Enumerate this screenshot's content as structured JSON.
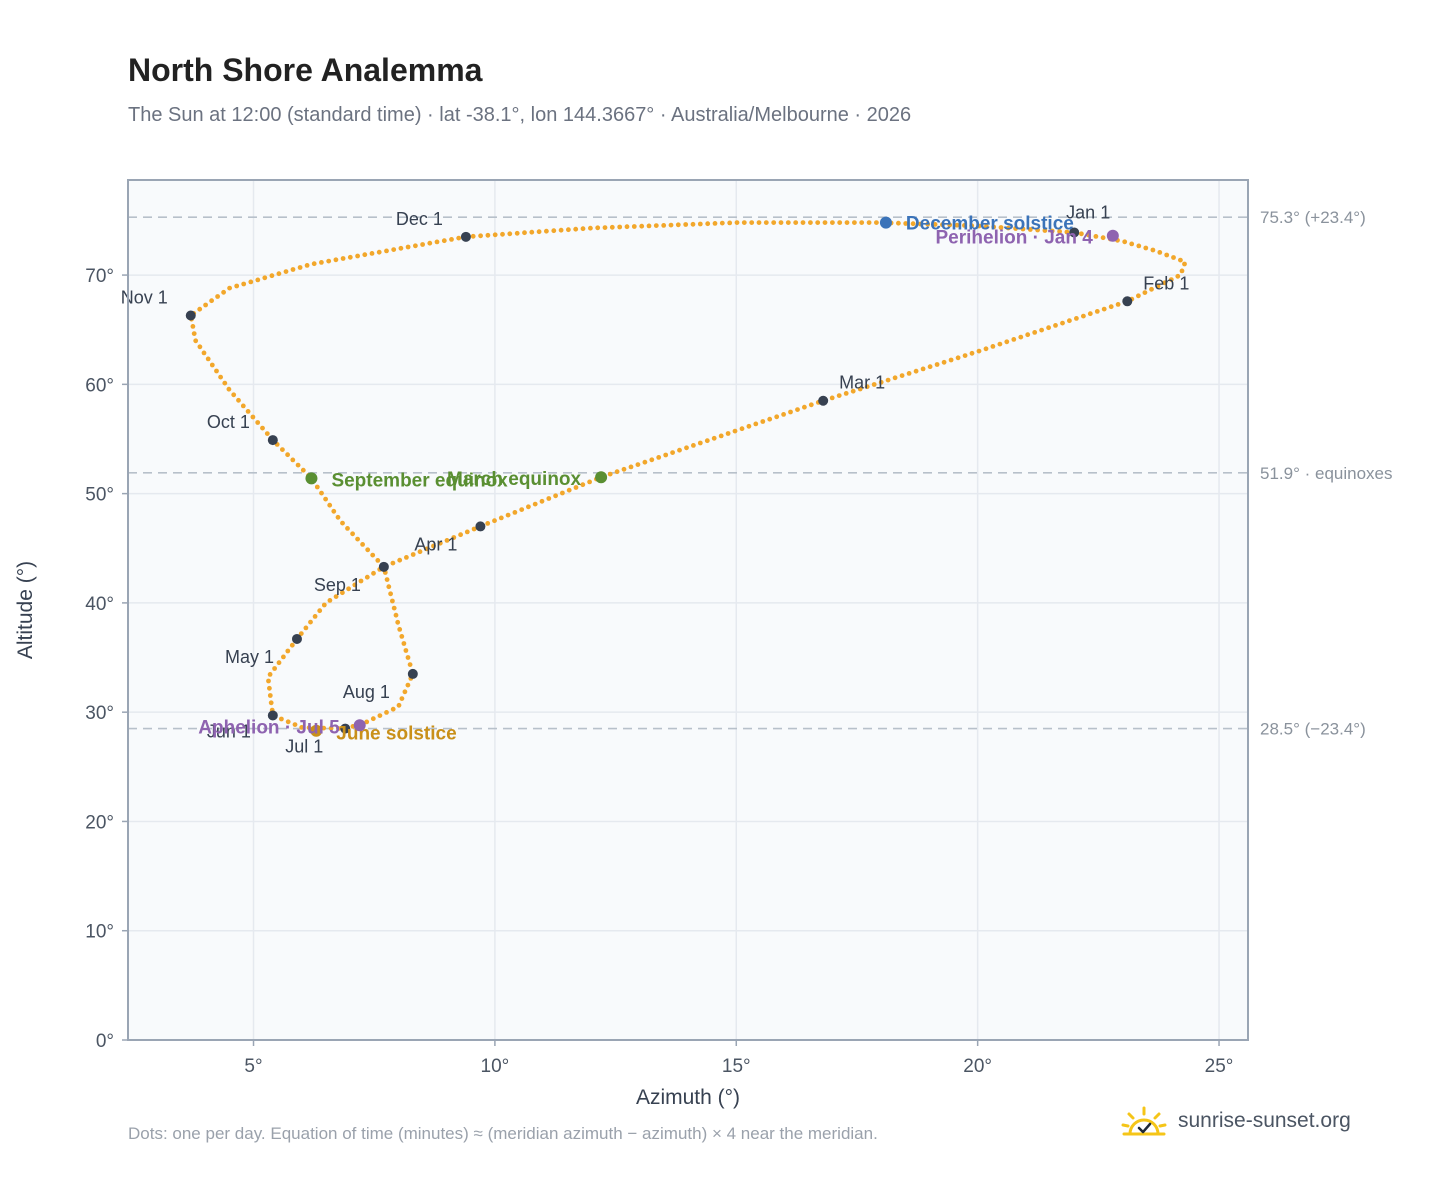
{
  "title": "North Shore Analemma",
  "subtitle": "The Sun at 12:00 (standard time) · lat -38.1°, lon 144.3667° · Australia/Melbourne · 2026",
  "footnote": "Dots: one per day. Equation of time (minutes) ≈ (meridian azimuth − azimuth) × 4 near the meridian.",
  "brand": {
    "name": "sunrise-sunset.org",
    "icon": "sun-check-icon"
  },
  "colors": {
    "path": "#f2a72b",
    "month": "#374151",
    "solstice_dec": "#3b73b9",
    "solstice_jun": "#c9901a",
    "equinox": "#5a8f32",
    "apsis": "#8e63b0",
    "plot_bg": "#f8fafc",
    "grid": "#e5e9ef",
    "ref_line": "#b7c0ca"
  },
  "chart_data": {
    "type": "scatter",
    "xlabel": "Azimuth (°)",
    "ylabel": "Altitude (°)",
    "xlim": [
      2.4,
      25.6
    ],
    "ylim": [
      0,
      78.7
    ],
    "xticks": [
      5,
      10,
      15,
      20,
      25
    ],
    "yticks": [
      0,
      10,
      20,
      30,
      40,
      50,
      60,
      70
    ],
    "x_tick_suffix": "°",
    "y_tick_suffix": "°",
    "grid": true,
    "series": [
      {
        "points": [
          [
            22.0,
            73.9
          ],
          [
            23.0,
            73.1
          ],
          [
            23.7,
            72.2
          ],
          [
            24.3,
            71.2
          ],
          [
            24.2,
            70.0
          ],
          [
            23.1,
            67.6
          ],
          [
            20.0,
            63.0
          ],
          [
            16.8,
            58.5
          ],
          [
            12.2,
            51.5
          ],
          [
            9.7,
            47.0
          ],
          [
            7.7,
            43.3
          ],
          [
            6.5,
            40.0
          ],
          [
            5.9,
            36.7
          ],
          [
            5.3,
            33.2
          ],
          [
            5.4,
            29.7
          ],
          [
            6.0,
            28.6
          ],
          [
            6.8,
            28.5
          ],
          [
            7.2,
            28.8
          ],
          [
            8.0,
            30.5
          ],
          [
            8.3,
            33.5
          ],
          [
            8.0,
            38.0
          ],
          [
            7.7,
            43.3
          ],
          [
            6.8,
            47.5
          ],
          [
            6.2,
            51.4
          ],
          [
            5.4,
            54.9
          ],
          [
            4.5,
            59.5
          ],
          [
            3.8,
            64.0
          ],
          [
            3.7,
            66.3
          ],
          [
            4.5,
            68.8
          ],
          [
            6.2,
            71.0
          ],
          [
            9.4,
            73.5
          ],
          [
            12.0,
            74.3
          ],
          [
            15.0,
            74.8
          ],
          [
            18.0,
            74.8
          ],
          [
            20.0,
            74.5
          ],
          [
            22.0,
            73.9
          ]
        ],
        "point_count": 365
      }
    ],
    "month_markers": [
      {
        "label": "Jan 1",
        "x": 22.0,
        "y": 73.9
      },
      {
        "label": "Feb 1",
        "x": 23.1,
        "y": 67.6
      },
      {
        "label": "Mar 1",
        "x": 16.8,
        "y": 58.5
      },
      {
        "label": "Apr 1",
        "x": 9.7,
        "y": 47.0
      },
      {
        "label": "May 1",
        "x": 5.9,
        "y": 36.7
      },
      {
        "label": "Jun 1",
        "x": 5.4,
        "y": 29.7
      },
      {
        "label": "Jul 1",
        "x": 6.9,
        "y": 28.5
      },
      {
        "label": "Aug 1",
        "x": 8.3,
        "y": 33.5
      },
      {
        "label": "Sep 1",
        "x": 7.7,
        "y": 43.3
      },
      {
        "label": "Oct 1",
        "x": 5.4,
        "y": 54.9
      },
      {
        "label": "Nov 1",
        "x": 3.7,
        "y": 66.3
      },
      {
        "label": "Dec 1",
        "x": 9.4,
        "y": 73.5
      }
    ],
    "events": [
      {
        "label": "December solstice",
        "x": 18.1,
        "y": 74.8,
        "kind": "solstice_dec"
      },
      {
        "label": "Perihelion · Jan 4",
        "x": 22.8,
        "y": 73.6,
        "kind": "apsis"
      },
      {
        "label": "March equinox",
        "x": 12.2,
        "y": 51.5,
        "kind": "equinox"
      },
      {
        "label": "September equinox",
        "x": 6.2,
        "y": 51.4,
        "kind": "equinox"
      },
      {
        "label": "June solstice",
        "x": 6.3,
        "y": 28.3,
        "kind": "solstice_jun"
      },
      {
        "label": "Aphelion · Jul 5",
        "x": 7.2,
        "y": 28.8,
        "kind": "apsis"
      }
    ],
    "reference_lines": [
      {
        "y": 75.3,
        "label": "75.3° (+23.4°)"
      },
      {
        "y": 51.9,
        "label": "51.9° · equinoxes"
      },
      {
        "y": 28.5,
        "label": "28.5° (−23.4°)"
      }
    ]
  }
}
